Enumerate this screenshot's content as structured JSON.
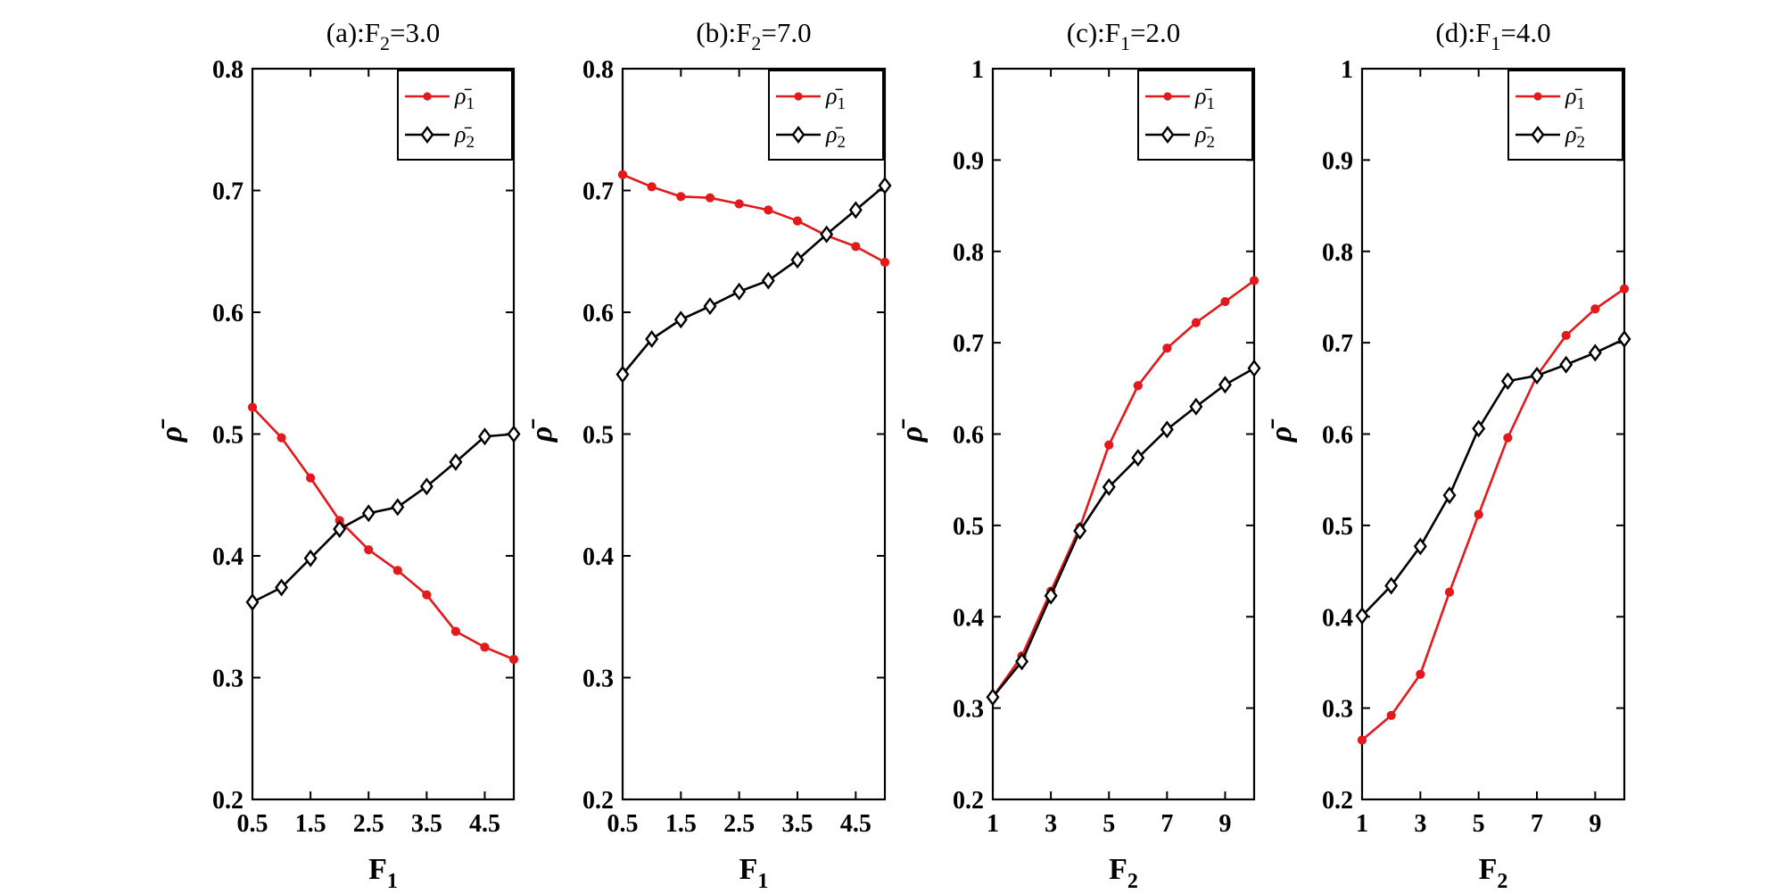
{
  "chart_data": [
    {
      "type": "line",
      "title": "(a):F",
      "title_sub": "2",
      "title_tail": "=3.0",
      "xlabel": "F",
      "xlabel_sub": "1",
      "ylabel": "ρ̄",
      "xlim": [
        0.5,
        5.0
      ],
      "ylim": [
        0.2,
        0.8
      ],
      "xticks": [
        0.5,
        1.5,
        2.5,
        3.5,
        4.5
      ],
      "xtick_labels": [
        "0.5",
        "1.5",
        "2.5",
        "3.5",
        "4.5"
      ],
      "yticks": [
        0.2,
        0.3,
        0.4,
        0.5,
        0.6,
        0.7,
        0.8
      ],
      "ytick_labels": [
        "0.2",
        "0.3",
        "0.4",
        "0.5",
        "0.6",
        "0.7",
        "0.8"
      ],
      "x": [
        0.5,
        1.0,
        1.5,
        2.0,
        2.5,
        3.0,
        3.5,
        4.0,
        4.5,
        5.0
      ],
      "series": [
        {
          "name": "ρ̄",
          "sub": "1",
          "color": "#e3191c",
          "marker": "dot",
          "values": [
            0.522,
            0.497,
            0.464,
            0.429,
            0.405,
            0.388,
            0.368,
            0.338,
            0.325,
            0.315
          ]
        },
        {
          "name": "ρ̄",
          "sub": "2",
          "color": "#000000",
          "marker": "diamond",
          "values": [
            0.362,
            0.374,
            0.398,
            0.422,
            0.435,
            0.44,
            0.457,
            0.477,
            0.498,
            0.5
          ]
        }
      ]
    },
    {
      "type": "line",
      "title": "(b):F",
      "title_sub": "2",
      "title_tail": "=7.0",
      "xlabel": "F",
      "xlabel_sub": "1",
      "ylabel": "ρ̄",
      "xlim": [
        0.5,
        5.0
      ],
      "ylim": [
        0.2,
        0.8
      ],
      "xticks": [
        0.5,
        1.5,
        2.5,
        3.5,
        4.5
      ],
      "xtick_labels": [
        "0.5",
        "1.5",
        "2.5",
        "3.5",
        "4.5"
      ],
      "yticks": [
        0.2,
        0.3,
        0.4,
        0.5,
        0.6,
        0.7,
        0.8
      ],
      "ytick_labels": [
        "0.2",
        "0.3",
        "0.4",
        "0.5",
        "0.6",
        "0.7",
        "0.8"
      ],
      "x": [
        0.5,
        1.0,
        1.5,
        2.0,
        2.5,
        3.0,
        3.5,
        4.0,
        4.5,
        5.0
      ],
      "series": [
        {
          "name": "ρ̄",
          "sub": "1",
          "color": "#e3191c",
          "marker": "dot",
          "values": [
            0.713,
            0.703,
            0.695,
            0.694,
            0.689,
            0.684,
            0.675,
            0.663,
            0.654,
            0.641
          ]
        },
        {
          "name": "ρ̄",
          "sub": "2",
          "color": "#000000",
          "marker": "diamond",
          "values": [
            0.549,
            0.578,
            0.594,
            0.605,
            0.617,
            0.626,
            0.643,
            0.664,
            0.684,
            0.704
          ]
        }
      ]
    },
    {
      "type": "line",
      "title": "(c):F",
      "title_sub": "1",
      "title_tail": "=2.0",
      "xlabel": "F",
      "xlabel_sub": "2",
      "ylabel": "ρ̄",
      "xlim": [
        1,
        10
      ],
      "ylim": [
        0.2,
        1.0
      ],
      "xticks": [
        1,
        3,
        5,
        7,
        9
      ],
      "xtick_labels": [
        "1",
        "3",
        "5",
        "7",
        "9"
      ],
      "yticks": [
        0.2,
        0.3,
        0.4,
        0.5,
        0.6,
        0.7,
        0.8,
        0.9,
        1.0
      ],
      "ytick_labels": [
        "0.2",
        "0.3",
        "0.4",
        "0.5",
        "0.6",
        "0.7",
        "0.8",
        "0.9",
        "1"
      ],
      "x": [
        1,
        2,
        3,
        4,
        5,
        6,
        7,
        8,
        9,
        10
      ],
      "series": [
        {
          "name": "ρ̄",
          "sub": "1",
          "color": "#e3191c",
          "marker": "dot",
          "values": [
            0.312,
            0.357,
            0.428,
            0.498,
            0.588,
            0.653,
            0.694,
            0.722,
            0.745,
            0.768
          ]
        },
        {
          "name": "ρ̄",
          "sub": "2",
          "color": "#000000",
          "marker": "diamond",
          "values": [
            0.312,
            0.351,
            0.423,
            0.494,
            0.542,
            0.574,
            0.605,
            0.63,
            0.654,
            0.672
          ]
        }
      ]
    },
    {
      "type": "line",
      "title": "(d):F",
      "title_sub": "1",
      "title_tail": "=4.0",
      "xlabel": "F",
      "xlabel_sub": "2",
      "ylabel": "ρ̄",
      "xlim": [
        1,
        10
      ],
      "ylim": [
        0.2,
        1.0
      ],
      "xticks": [
        1,
        3,
        5,
        7,
        9
      ],
      "xtick_labels": [
        "1",
        "3",
        "5",
        "7",
        "9"
      ],
      "yticks": [
        0.2,
        0.3,
        0.4,
        0.5,
        0.6,
        0.7,
        0.8,
        0.9,
        1.0
      ],
      "ytick_labels": [
        "0.2",
        "0.3",
        "0.4",
        "0.5",
        "0.6",
        "0.7",
        "0.8",
        "0.9",
        "1"
      ],
      "x": [
        1,
        2,
        3,
        4,
        5,
        6,
        7,
        8,
        9,
        10
      ],
      "series": [
        {
          "name": "ρ̄",
          "sub": "1",
          "color": "#e3191c",
          "marker": "dot",
          "values": [
            0.265,
            0.292,
            0.337,
            0.427,
            0.512,
            0.596,
            0.664,
            0.708,
            0.737,
            0.759
          ]
        },
        {
          "name": "ρ̄",
          "sub": "2",
          "color": "#000000",
          "marker": "diamond",
          "values": [
            0.401,
            0.434,
            0.477,
            0.533,
            0.606,
            0.658,
            0.664,
            0.676,
            0.689,
            0.704
          ]
        }
      ]
    }
  ]
}
